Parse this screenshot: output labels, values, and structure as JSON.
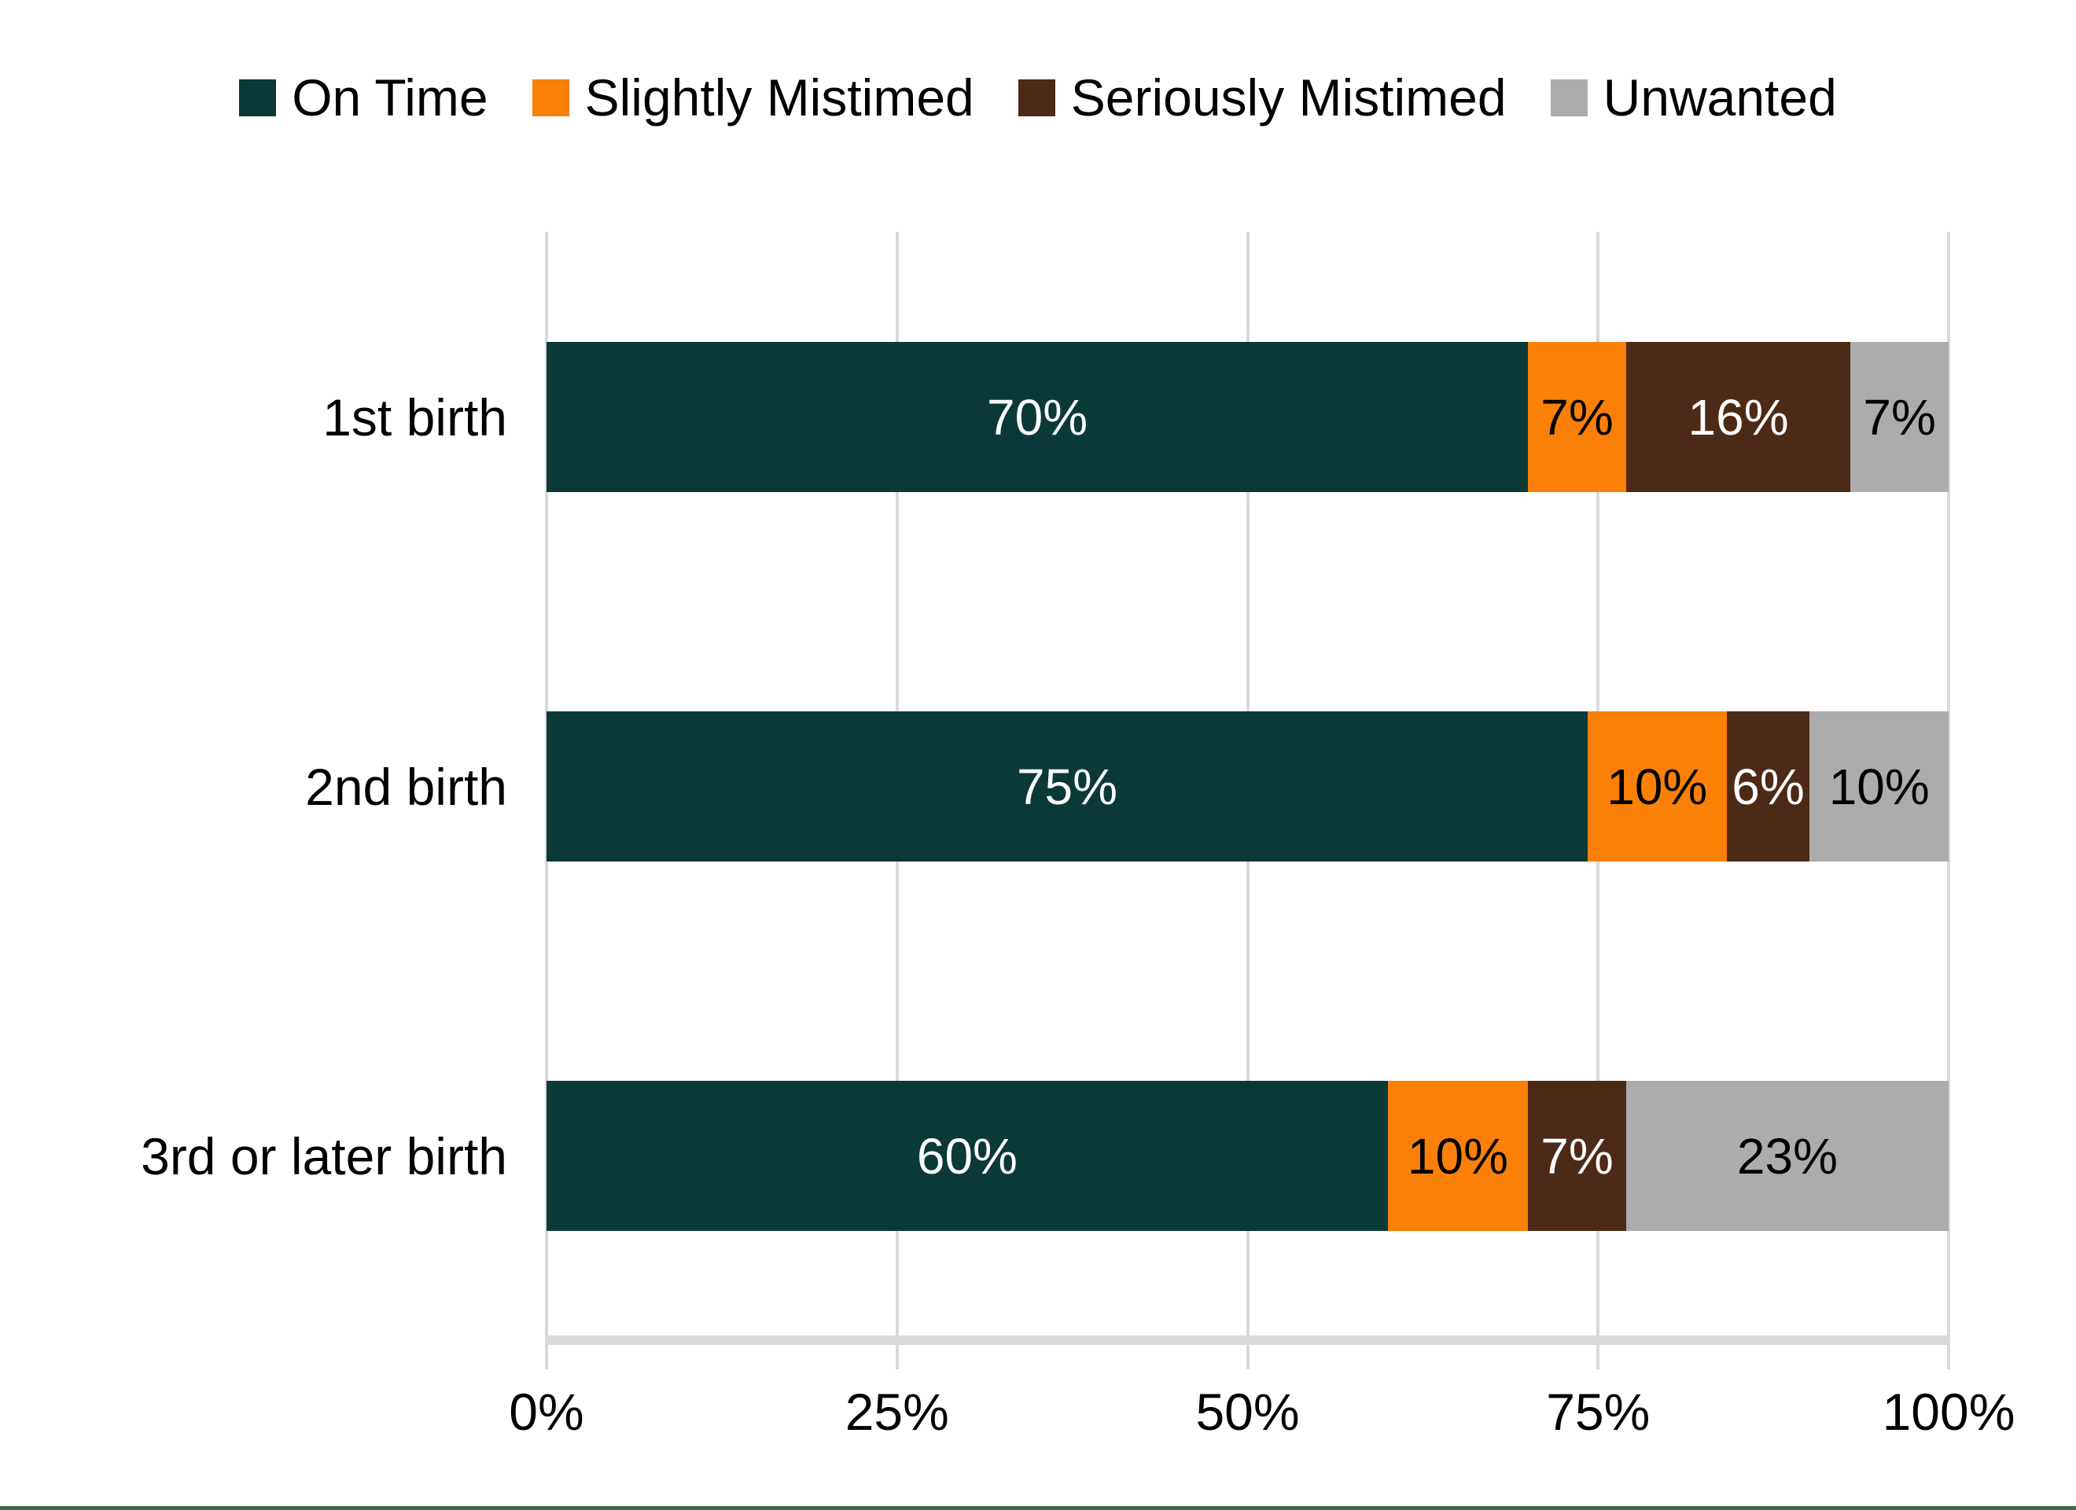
{
  "chart_data": {
    "type": "bar",
    "orientation": "horizontal",
    "stacked": true,
    "title": "",
    "categories": [
      "1st birth",
      "2nd birth",
      "3rd or later birth"
    ],
    "series": [
      {
        "name": "On Time",
        "color": "#0B3938",
        "label_color": "#FFFFFF",
        "values": [
          70,
          75,
          60
        ]
      },
      {
        "name": "Slightly Mistimed",
        "color": "#FA8008",
        "label_color": "#000000",
        "values": [
          7,
          10,
          10
        ]
      },
      {
        "name": "Seriously Mistimed",
        "color": "#4D2A16",
        "label_color": "#FFFFFF",
        "values": [
          16,
          6,
          7
        ]
      },
      {
        "name": "Unwanted",
        "color": "#ACACAC",
        "label_color": "#000000",
        "values": [
          7,
          10,
          23
        ]
      }
    ],
    "data_label_suffix": "%",
    "xlabel": "",
    "ylabel": "",
    "x_axis": {
      "ticks": [
        "0%",
        "25%",
        "50%",
        "75%",
        "100%"
      ],
      "range": [
        0,
        100
      ]
    },
    "legend_position": "top",
    "gridlines": true
  },
  "colors": {
    "gridline": "#D9D9D9",
    "axis_line": "#D9D9D9",
    "text": "#000000",
    "background": "#FFFFFF",
    "footer_rule": "#406B50"
  }
}
